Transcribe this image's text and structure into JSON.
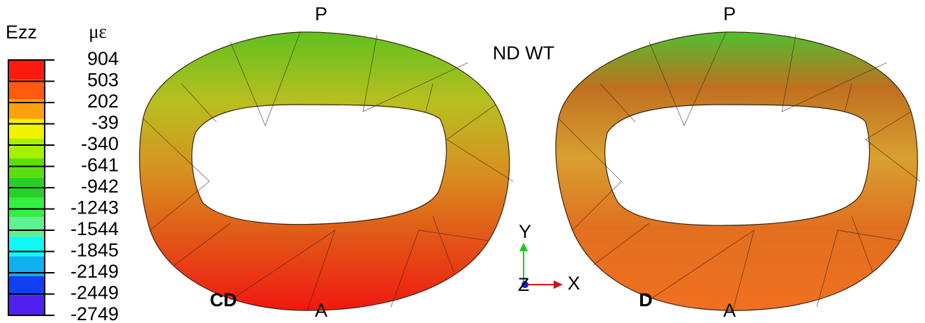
{
  "legend": {
    "title": "Ezz",
    "unit": "με",
    "levels": [
      "904",
      "503",
      "202",
      "-39",
      "-340",
      "-641",
      "-942",
      "-1243",
      "-1544",
      "-1845",
      "-2149",
      "-2449",
      "-2749"
    ],
    "colors": [
      "#ff1a10",
      "#ff5a10",
      "#ffa010",
      "#f2f200",
      "#a8f000",
      "#5ae010",
      "#28d028",
      "#30f040",
      "#60f090",
      "#10f8f8",
      "#10b0f0",
      "#1040f0",
      "#5020f0"
    ]
  },
  "title": "ND WT",
  "panels": [
    {
      "label": "CD",
      "top": "P",
      "bottom": "A"
    },
    {
      "label": "D",
      "top": "P",
      "bottom": "A"
    }
  ],
  "axes": {
    "y": "Y",
    "z": "Z",
    "x": "X"
  }
}
